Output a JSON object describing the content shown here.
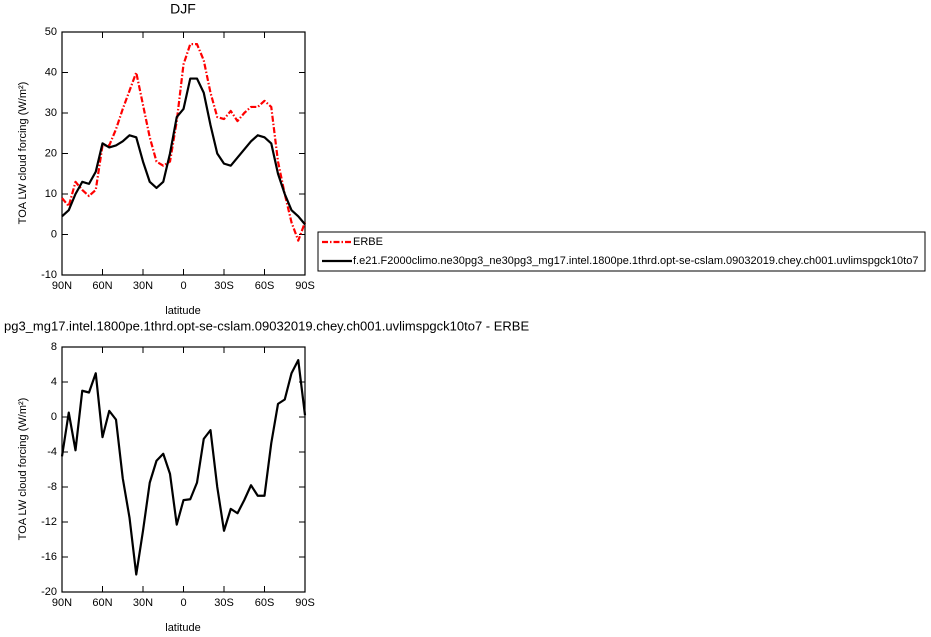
{
  "chart_data": [
    {
      "type": "line",
      "title": "DJF",
      "xlabel": "latitude",
      "ylabel": "TOA LW cloud forcing (W/m²)",
      "x": [
        90,
        85,
        80,
        75,
        70,
        65,
        60,
        55,
        50,
        45,
        40,
        35,
        30,
        25,
        20,
        15,
        10,
        5,
        0,
        -5,
        -10,
        -15,
        -20,
        -25,
        -30,
        -35,
        -40,
        -45,
        -50,
        -55,
        -60,
        -65,
        -70,
        -75,
        -80,
        -85,
        -90
      ],
      "xlim": [
        90,
        -90
      ],
      "xticks": [
        {
          "value": 90,
          "label": "90N"
        },
        {
          "value": 60,
          "label": "60N"
        },
        {
          "value": 30,
          "label": "30N"
        },
        0,
        {
          "value": -30,
          "label": "30S"
        },
        {
          "value": -60,
          "label": "60S"
        },
        {
          "value": -90,
          "label": "90S"
        }
      ],
      "ylim": [
        -10,
        50
      ],
      "yticks": [
        -10,
        0,
        10,
        20,
        30,
        40,
        50
      ],
      "legend": "right",
      "series": [
        {
          "name": "ERBE",
          "color": "#ff0000",
          "dash": true,
          "values": [
            9,
            7,
            13,
            11,
            9.5,
            11,
            22,
            22,
            26,
            31,
            35.5,
            40,
            32,
            24,
            18,
            17,
            18,
            28,
            42,
            47,
            47,
            43,
            35,
            29,
            28.5,
            30.5,
            28,
            30,
            31.5,
            31.5,
            33,
            31.5,
            18,
            10,
            3,
            -1.5,
            3
          ]
        },
        {
          "name": "f.e21.F2000climo.ne30pg3_ne30pg3_mg17.intel.1800pe.1thrd.opt-se-cslam.09032019.chey.ch001.uvlimspgck10to7",
          "color": "#000000",
          "dash": false,
          "values": [
            4.5,
            6,
            10,
            13,
            12.5,
            15.5,
            22.5,
            21.5,
            22,
            23,
            24.5,
            24,
            18,
            13,
            11.5,
            13,
            20,
            29,
            31,
            38.5,
            38.5,
            35,
            27,
            20,
            17.5,
            17,
            19,
            21,
            23,
            24.5,
            24,
            22.5,
            15,
            10,
            6,
            4.5,
            2.5
          ]
        }
      ]
    },
    {
      "type": "line",
      "title": "pg3_mg17.intel.1800pe.1thrd.opt-se-cslam.09032019.chey.ch001.uvlimspgck10to7 - ERBE",
      "xlabel": "latitude",
      "ylabel": "TOA LW cloud forcing (W/m²)",
      "x": [
        90,
        85,
        80,
        75,
        70,
        65,
        60,
        55,
        50,
        45,
        40,
        35,
        30,
        25,
        20,
        15,
        10,
        5,
        0,
        -5,
        -10,
        -15,
        -20,
        -25,
        -30,
        -35,
        -40,
        -45,
        -50,
        -55,
        -60,
        -65,
        -70,
        -75,
        -80,
        -85,
        -90
      ],
      "xlim": [
        90,
        -90
      ],
      "xticks": [
        {
          "value": 90,
          "label": "90N"
        },
        {
          "value": 60,
          "label": "60N"
        },
        {
          "value": 30,
          "label": "30N"
        },
        0,
        {
          "value": -30,
          "label": "30S"
        },
        {
          "value": -60,
          "label": "60S"
        },
        {
          "value": -90,
          "label": "90S"
        }
      ],
      "ylim": [
        -20,
        8
      ],
      "yticks": [
        -20,
        -16,
        -12,
        -8,
        -4,
        0,
        4,
        8
      ],
      "color": "#000000",
      "values": [
        -4.5,
        0.5,
        -3.8,
        3,
        2.8,
        5,
        -2.3,
        0.7,
        -0.3,
        -7,
        -11.5,
        -18,
        -13,
        -7.5,
        -5,
        -4.2,
        -6.5,
        -12.3,
        -9.5,
        -9.4,
        -7.5,
        -2.5,
        -1.5,
        -8,
        -13,
        -10.5,
        -11,
        -9.5,
        -7.8,
        -9,
        -9,
        -3,
        1.5,
        2,
        5,
        6.5,
        0.2
      ]
    }
  ]
}
